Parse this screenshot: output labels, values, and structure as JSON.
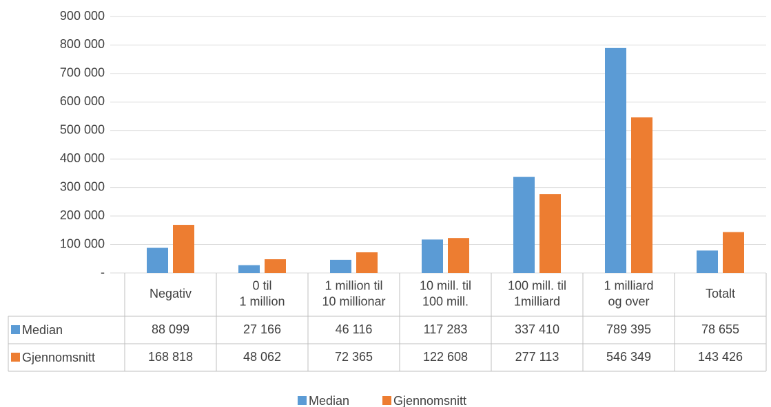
{
  "chart_data": {
    "type": "bar",
    "categories": [
      "Negativ",
      "0 til\n1 million",
      "1 million til\n10 millionar",
      "10 mill. til\n100 mill.",
      "100 mill. til\n1milliard",
      "1 milliard\nog over",
      "Totalt"
    ],
    "series": [
      {
        "name": "Median",
        "color": "#5b9bd5",
        "values": [
          88099,
          27166,
          46116,
          117283,
          337410,
          789395,
          78655
        ],
        "value_labels": [
          "88 099",
          "27 166",
          "46 116",
          "117 283",
          "337 410",
          "789 395",
          "78 655"
        ]
      },
      {
        "name": "Gjennomsnitt",
        "color": "#ed7d31",
        "values": [
          168818,
          48062,
          72365,
          122608,
          277113,
          546349,
          143426
        ],
        "value_labels": [
          "168 818",
          "48 062",
          "72 365",
          "122 608",
          "277 113",
          "546 349",
          "143 426"
        ]
      }
    ],
    "ylim": [
      0,
      900000
    ],
    "yticks": [
      {
        "value": 0,
        "label": "-"
      },
      {
        "value": 100000,
        "label": "100 000"
      },
      {
        "value": 200000,
        "label": "200 000"
      },
      {
        "value": 300000,
        "label": "300 000"
      },
      {
        "value": 400000,
        "label": "400 000"
      },
      {
        "value": 500000,
        "label": "500 000"
      },
      {
        "value": 600000,
        "label": "600 000"
      },
      {
        "value": 700000,
        "label": "700 000"
      },
      {
        "value": 800000,
        "label": "800 000"
      },
      {
        "value": 900000,
        "label": "900 000"
      }
    ],
    "grid": true,
    "legend": "bottom"
  }
}
